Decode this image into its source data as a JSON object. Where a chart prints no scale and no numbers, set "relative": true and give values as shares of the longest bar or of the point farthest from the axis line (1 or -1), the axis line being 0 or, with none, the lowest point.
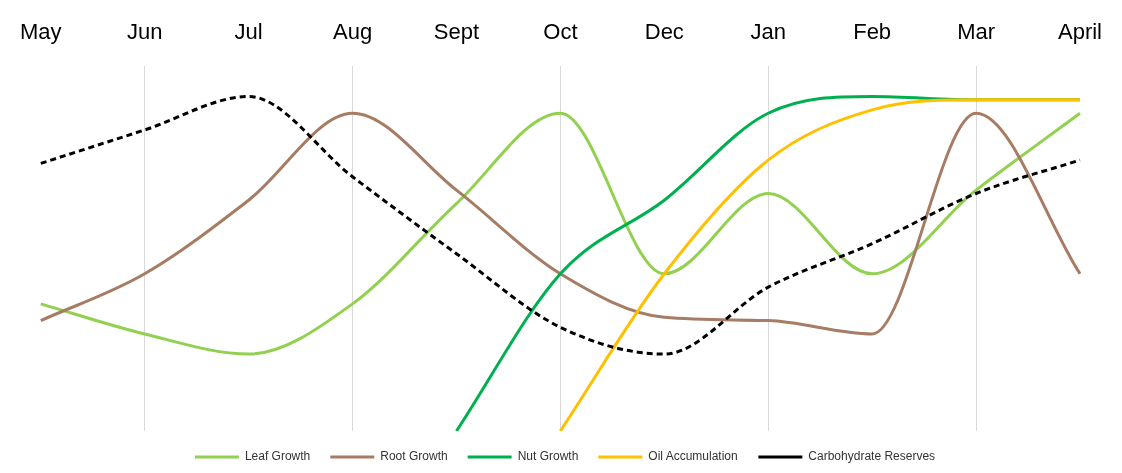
{
  "chart_data": {
    "type": "line",
    "relative": true,
    "categories": [
      "May",
      "Jun",
      "Jul",
      "Aug",
      "Sept",
      "Oct",
      "Dec",
      "Jan",
      "Feb",
      "Mar",
      "April"
    ],
    "series": [
      {
        "name": "Leaf Growth",
        "color": "#92d050",
        "values": [
          0.38,
          0.29,
          0.23,
          0.38,
          0.68,
          0.95,
          0.47,
          0.71,
          0.47,
          0.72,
          0.95
        ]
      },
      {
        "name": "Root Growth",
        "color": "#a67c64",
        "values": [
          0.33,
          0.47,
          0.69,
          0.95,
          0.72,
          0.47,
          0.34,
          0.33,
          0.29,
          0.95,
          0.47
        ]
      },
      {
        "name": "Nut Growth",
        "color": "#00b050",
        "values": [
          null,
          null,
          null,
          null,
          0,
          0.47,
          0.69,
          0.95,
          1,
          0.99,
          0.99
        ]
      },
      {
        "name": "Oil Accumulation",
        "color": "#ffc000",
        "values": [
          null,
          null,
          null,
          null,
          null,
          0,
          0.47,
          0.81,
          0.96,
          0.99,
          0.99
        ]
      },
      {
        "name": "Carbohydrate Reserves",
        "color": "#000000",
        "line_style": "dashed",
        "values": [
          0.8,
          0.9,
          1,
          0.76,
          0.53,
          0.31,
          0.23,
          0.43,
          0.56,
          0.71,
          0.81
        ]
      }
    ],
    "grid": "x",
    "legend": "bottom",
    "marker": "none"
  }
}
